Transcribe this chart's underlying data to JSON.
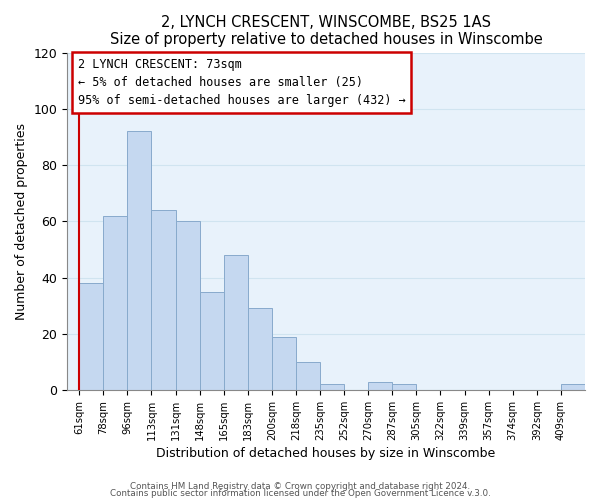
{
  "title": "2, LYNCH CRESCENT, WINSCOMBE, BS25 1AS",
  "subtitle": "Size of property relative to detached houses in Winscombe",
  "xlabel": "Distribution of detached houses by size in Winscombe",
  "ylabel": "Number of detached properties",
  "bar_color": "#c5d8f0",
  "bar_edge_color": "#88aacc",
  "categories": [
    "61sqm",
    "78sqm",
    "96sqm",
    "113sqm",
    "131sqm",
    "148sqm",
    "165sqm",
    "183sqm",
    "200sqm",
    "218sqm",
    "235sqm",
    "252sqm",
    "270sqm",
    "287sqm",
    "305sqm",
    "322sqm",
    "339sqm",
    "357sqm",
    "374sqm",
    "392sqm",
    "409sqm"
  ],
  "values": [
    38,
    62,
    92,
    64,
    60,
    35,
    48,
    29,
    19,
    10,
    2,
    0,
    3,
    2,
    0,
    0,
    0,
    0,
    0,
    0,
    2
  ],
  "ylim": [
    0,
    120
  ],
  "yticks": [
    0,
    20,
    40,
    60,
    80,
    100,
    120
  ],
  "annotation_line1": "2 LYNCH CRESCENT: 73sqm",
  "annotation_line2": "← 5% of detached houses are smaller (25)",
  "annotation_line3": "95% of semi-detached houses are larger (432) →",
  "annotation_box_edge_color": "#cc0000",
  "footer1": "Contains HM Land Registry data © Crown copyright and database right 2024.",
  "footer2": "Contains public sector information licensed under the Open Government Licence v.3.0."
}
